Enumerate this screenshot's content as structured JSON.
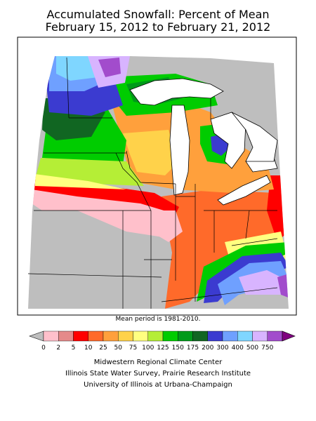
{
  "header": {
    "title_line1": "Accumulated Snowfall: Percent of Mean",
    "title_line2": "February 15, 2012 to February 21, 2012"
  },
  "footnote": "Mean period is 1981-2010.",
  "legend": {
    "bins": [
      {
        "label": "0",
        "color": "#ffc0cb"
      },
      {
        "label": "2",
        "color": "#e58a8a"
      },
      {
        "label": "5",
        "color": "#ff0000"
      },
      {
        "label": "10",
        "color": "#ff6a2a"
      },
      {
        "label": "25",
        "color": "#ffa03c"
      },
      {
        "label": "50",
        "color": "#ffd24a"
      },
      {
        "label": "75",
        "color": "#ffff80"
      },
      {
        "label": "100",
        "color": "#b5ee36"
      },
      {
        "label": "125",
        "color": "#00cc00"
      },
      {
        "label": "150",
        "color": "#009a1a"
      },
      {
        "label": "175",
        "color": "#116622"
      },
      {
        "label": "200",
        "color": "#3b3bd0"
      },
      {
        "label": "300",
        "color": "#6fa0ff"
      },
      {
        "label": "400",
        "color": "#7fd6ff"
      },
      {
        "label": "500",
        "color": "#d8b4ff"
      },
      {
        "label": "750",
        "color": "#a24ccc"
      }
    ],
    "end_color": "#800080",
    "below_color": "#bebebe"
  },
  "credits": {
    "line1": "Midwestern Regional Climate Center",
    "line2": "Illinois State Water Survey, Prairie Research Institute",
    "line3": "University of Illinois at Urbana-Champaign"
  }
}
